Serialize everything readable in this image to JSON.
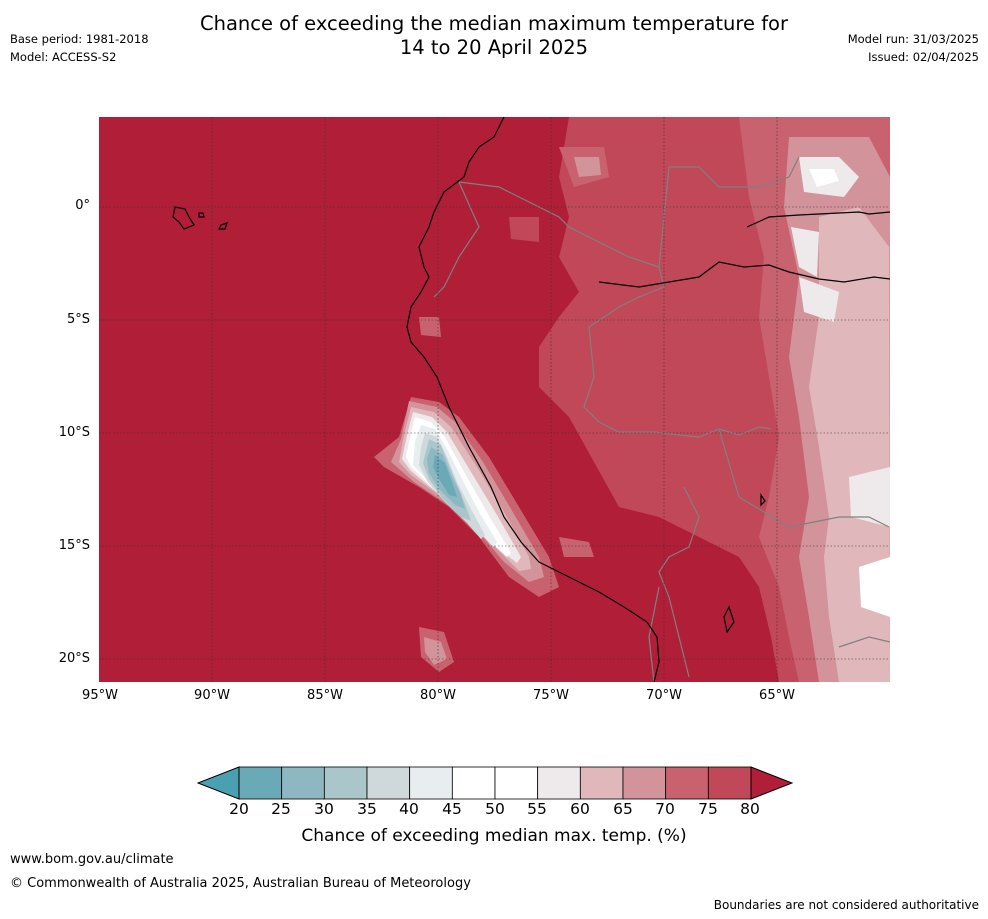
{
  "header": {
    "title_line1": "Chance of exceeding the median maximum temperature for",
    "title_line2": "14 to 20 April 2025",
    "base_period": "Base period: 1981-2018",
    "model": "Model: ACCESS-S2",
    "model_run": "Model run: 31/03/2025",
    "issued": "Issued: 02/04/2025"
  },
  "map": {
    "lat_labels": [
      "0°",
      "5°S",
      "10°S",
      "15°S",
      "20°S"
    ],
    "lon_labels": [
      "95°W",
      "90°W",
      "85°W",
      "80°W",
      "75°W",
      "70°W",
      "65°W"
    ],
    "colors": {
      "gt80": "#b01e38",
      "75_80": "#c04858",
      "70_75": "#c9626f",
      "65_70": "#d3939a",
      "60_65": "#e0b8bc",
      "55_60": "#eee9ea",
      "45_55": "#ffffff",
      "40_45": "#e8eef0",
      "35_40": "#cfd9db",
      "30_35": "#aac6ca",
      "25_30": "#8db8c2",
      "20_25": "#6aaab6",
      "lt20": "#4aa0b0",
      "coastline": "#000000",
      "borders": "#808080"
    }
  },
  "colorbar": {
    "ticks": [
      "20",
      "25",
      "30",
      "35",
      "40",
      "45",
      "50",
      "55",
      "60",
      "65",
      "70",
      "75",
      "80"
    ],
    "label": "Chance of exceeding median max. temp. (%)",
    "colors": [
      "#6aaab6",
      "#8db8c2",
      "#aac6ca",
      "#cfd9db",
      "#e8eef0",
      "#ffffff",
      "#ffffff",
      "#eee9ea",
      "#e0b8bc",
      "#d3939a",
      "#c9626f",
      "#c04858"
    ],
    "under_color": "#4aa0b0",
    "over_color": "#b01e38"
  },
  "footer": {
    "website": "www.bom.gov.au/climate",
    "copyright": "© Commonwealth of Australia 2025, Australian Bureau of Meteorology",
    "disclaimer": "Boundaries are not considered authoritative"
  }
}
